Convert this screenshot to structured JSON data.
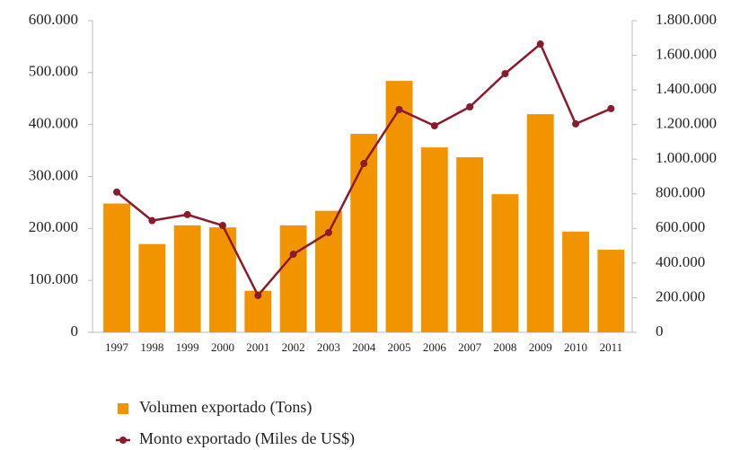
{
  "chart_data": {
    "type": "bar_line",
    "categories": [
      "1997",
      "1998",
      "1999",
      "2000",
      "2001",
      "2002",
      "2003",
      "2004",
      "2005",
      "2006",
      "2007",
      "2008",
      "2009",
      "2010",
      "2011"
    ],
    "series": [
      {
        "name": "Volumen exportado (Tons)",
        "type": "bar",
        "color": "#f29400",
        "axis": "y",
        "values": [
          248000,
          170000,
          206000,
          202000,
          80000,
          206000,
          234000,
          382000,
          484000,
          356000,
          337000,
          266000,
          420000,
          194000,
          159000
        ]
      },
      {
        "name": "Monto exportado (Miles de US$)",
        "type": "line",
        "color": "#8b1a2a",
        "axis": "y2",
        "values": [
          810000,
          645000,
          680000,
          617000,
          213000,
          451000,
          576000,
          975000,
          1287000,
          1193000,
          1302000,
          1494000,
          1665000,
          1204000,
          1292000
        ]
      }
    ],
    "ylim": [
      0,
      600000
    ],
    "yticks": [
      0,
      {
        "value": 100000,
        "label": "100.000"
      },
      {
        "value": 200000,
        "label": "200.000"
      },
      {
        "value": 300000,
        "label": "300.000"
      },
      {
        "value": 400000,
        "label": "400.000"
      },
      {
        "value": 500000,
        "label": "500.000"
      },
      {
        "value": 600000,
        "label": "600.000"
      }
    ],
    "y2lim": [
      0,
      1800000
    ],
    "y2ticks": [
      0,
      {
        "value": 200000,
        "label": "200.000"
      },
      {
        "value": 400000,
        "label": "400.000"
      },
      {
        "value": 600000,
        "label": "600.000"
      },
      {
        "value": 800000,
        "label": "800.000"
      },
      {
        "value": 1000000,
        "label": "1.000.000"
      },
      {
        "value": 1200000,
        "label": "1.200.000"
      },
      {
        "value": 1400000,
        "label": "1.400.000"
      },
      {
        "value": 1600000,
        "label": "1.600.000"
      },
      {
        "value": 1800000,
        "label": "1.800.000"
      }
    ],
    "legend": "bottom"
  }
}
